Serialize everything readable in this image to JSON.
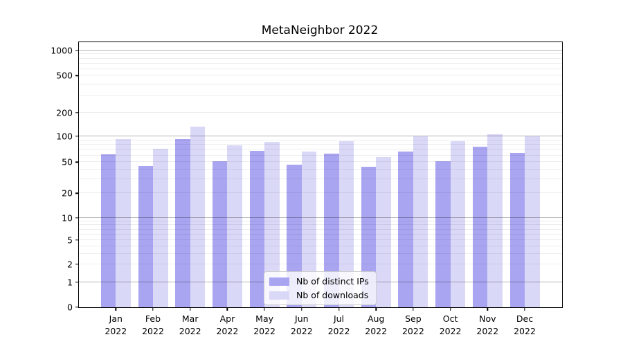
{
  "title": "MetaNeighbor 2022",
  "chart_data": {
    "type": "bar",
    "title": "MetaNeighbor 2022",
    "x_tick_labels": [
      {
        "month": "Jan",
        "year": "2022"
      },
      {
        "month": "Feb",
        "year": "2022"
      },
      {
        "month": "Mar",
        "year": "2022"
      },
      {
        "month": "Apr",
        "year": "2022"
      },
      {
        "month": "May",
        "year": "2022"
      },
      {
        "month": "Jun",
        "year": "2022"
      },
      {
        "month": "Jul",
        "year": "2022"
      },
      {
        "month": "Aug",
        "year": "2022"
      },
      {
        "month": "Sep",
        "year": "2022"
      },
      {
        "month": "Oct",
        "year": "2022"
      },
      {
        "month": "Nov",
        "year": "2022"
      },
      {
        "month": "Dec",
        "year": "2022"
      }
    ],
    "series": [
      {
        "name": "Nb of distinct IPs",
        "key": "distinct-ips",
        "color": "#a9a5f0",
        "values": [
          62,
          45,
          93,
          51,
          68,
          46,
          63,
          44,
          66,
          51,
          76,
          64
        ]
      },
      {
        "name": "Nb of downloads",
        "key": "downloads",
        "color": "#dad8f7",
        "values": [
          93,
          72,
          133,
          79,
          87,
          67,
          88,
          57,
          100,
          88,
          106,
          100
        ]
      }
    ],
    "y_axis": {
      "scale": "symlog",
      "tick_values": [
        0,
        1,
        2,
        5,
        10,
        20,
        50,
        100,
        200,
        500,
        1000
      ],
      "tick_labels": [
        "0",
        "1",
        "2",
        "5",
        "10",
        "20",
        "50",
        "100",
        "200",
        "500",
        "1000"
      ],
      "major_gridlines": [
        1,
        10,
        100,
        1000
      ],
      "minor_gridlines": [
        2,
        3,
        4,
        5,
        6,
        7,
        8,
        9,
        20,
        30,
        40,
        50,
        60,
        70,
        80,
        90,
        200,
        300,
        400,
        500,
        600,
        700,
        800,
        900
      ],
      "ylim": [
        0,
        1100
      ],
      "grid": true
    },
    "legend": {
      "position": "lower center",
      "entries": [
        "Nb of distinct IPs",
        "Nb of downloads"
      ]
    }
  }
}
